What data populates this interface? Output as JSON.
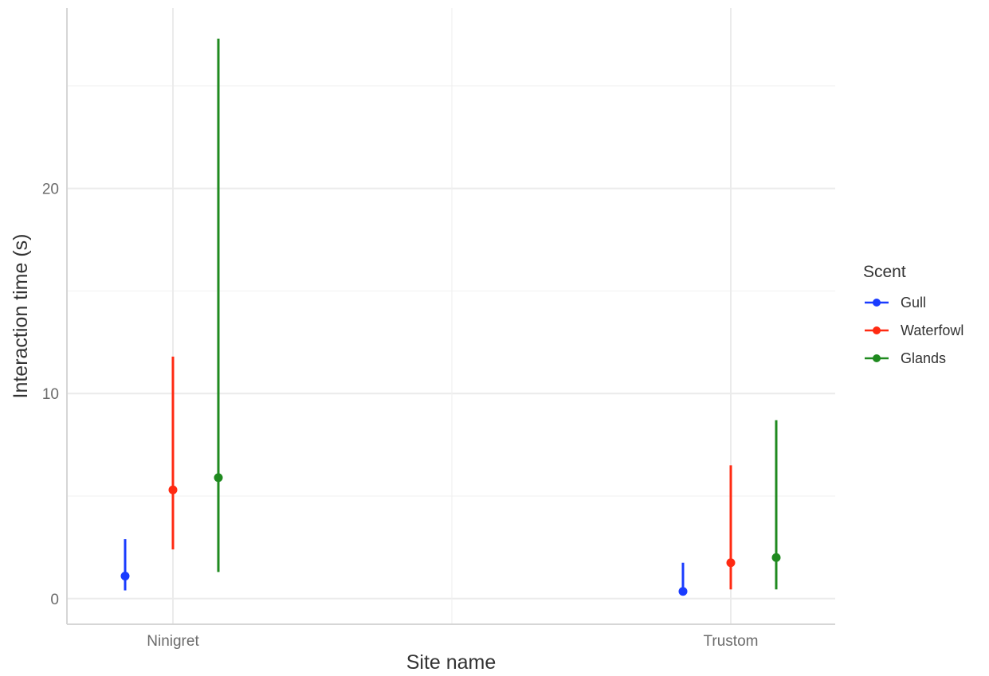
{
  "chart_data": {
    "type": "pointrange",
    "xlabel": "Site name",
    "ylabel": "Interaction time (s)",
    "categories": [
      "Ninigret",
      "Trustom"
    ],
    "y_ticks": [
      0,
      10,
      20
    ],
    "ylim": [
      -1.25,
      28.8
    ],
    "grid": true,
    "legend": {
      "title": "Scent",
      "position": "right"
    },
    "series": [
      {
        "name": "Gull",
        "color": "#1a3cff",
        "points": [
          {
            "category": "Ninigret",
            "value": 1.1,
            "lower": 0.4,
            "upper": 2.9
          },
          {
            "category": "Trustom",
            "value": 0.35,
            "lower": 0.15,
            "upper": 1.75
          }
        ]
      },
      {
        "name": "Waterfowl",
        "color": "#ff2a12",
        "points": [
          {
            "category": "Ninigret",
            "value": 5.3,
            "lower": 2.4,
            "upper": 11.8
          },
          {
            "category": "Trustom",
            "value": 1.75,
            "lower": 0.45,
            "upper": 6.5
          }
        ]
      },
      {
        "name": "Glands",
        "color": "#1f8a1f",
        "points": [
          {
            "category": "Ninigret",
            "value": 5.9,
            "lower": 1.3,
            "upper": 27.3
          },
          {
            "category": "Trustom",
            "value": 2.0,
            "lower": 0.45,
            "upper": 8.7
          }
        ]
      }
    ]
  }
}
